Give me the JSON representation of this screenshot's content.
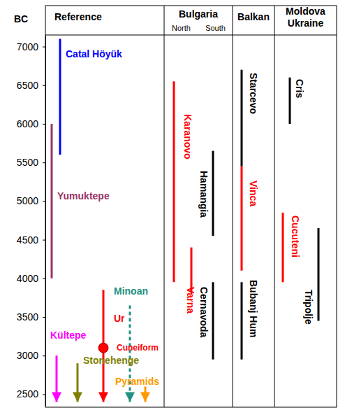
{
  "chart_data": {
    "type": "timeline",
    "y_label": "BC",
    "ylim": [
      7150,
      2350
    ],
    "yticks": [
      7000,
      6500,
      6000,
      5500,
      5000,
      4500,
      4000,
      3500,
      3000,
      2500
    ],
    "columns": [
      {
        "label": [
          "Reference"
        ]
      },
      {
        "label": [
          "Bulgaria"
        ],
        "sublabels": [
          "North",
          "South"
        ]
      },
      {
        "label": [
          "Balkan"
        ]
      },
      {
        "label": [
          "Moldova",
          "Ukraine"
        ]
      }
    ],
    "series": [
      {
        "name": "Catal Höyük",
        "group": "Reference",
        "color": "#0000ff",
        "start": 7100,
        "end": 5600
      },
      {
        "name": "Yumuktepe",
        "group": "Reference",
        "color": "#993366",
        "start": 6000,
        "end": 4000
      },
      {
        "name": "Kültepe",
        "group": "Reference",
        "color": "#ff00ff",
        "start": 3000,
        "end": 2400,
        "marker": "arrow"
      },
      {
        "name": "Stonehenge",
        "group": "Reference",
        "color": "#808000",
        "start": 2900,
        "end": 2400,
        "marker": "arrow"
      },
      {
        "name": "Ur",
        "group": "Reference",
        "color": "#ff0000",
        "start": 3850,
        "end": 2400,
        "marker": "arrow",
        "annotation": {
          "text": "Cuneiform",
          "value": 3100
        }
      },
      {
        "name": "Minoan",
        "group": "Reference",
        "color": "#209080",
        "start": 3650,
        "end": 2400,
        "marker": "arrow",
        "line_style": "dashed"
      },
      {
        "name": "Pyramids",
        "group": "Reference",
        "color": "#ff9900",
        "start": 2600,
        "end": 2400,
        "marker": "arrow"
      },
      {
        "name": "Karanovo",
        "group": "Bulgaria",
        "color": "#ff0000",
        "start": 6550,
        "end": 3950
      },
      {
        "name": "Varna",
        "group": "Bulgaria",
        "color": "#ff0000",
        "start": 4400,
        "end": 3800
      },
      {
        "name": "Hamangia",
        "group": "Bulgaria",
        "color": "#000000",
        "start": 5650,
        "end": 4550
      },
      {
        "name": "Cernavoda",
        "group": "Bulgaria",
        "color": "#000000",
        "start": 3950,
        "end": 2950
      },
      {
        "name": "Starcevo",
        "group": "Balkan",
        "color": "#000000",
        "start": 6700,
        "end": 5450
      },
      {
        "name": "Vinca",
        "group": "Balkan",
        "color": "#ff0000",
        "start": 5450,
        "end": 4100
      },
      {
        "name": "Bubanj Hum",
        "group": "Balkan",
        "color": "#000000",
        "start": 3950,
        "end": 2950
      },
      {
        "name": "Cris",
        "group": "Moldova Ukraine",
        "color": "#000000",
        "start": 6600,
        "end": 6000
      },
      {
        "name": "Cucuteni",
        "group": "Moldova Ukraine",
        "color": "#ff0000",
        "start": 4850,
        "end": 3950
      },
      {
        "name": "Tripolje",
        "group": "Moldova Ukraine",
        "color": "#000000",
        "start": 4650,
        "end": 3450
      }
    ]
  }
}
